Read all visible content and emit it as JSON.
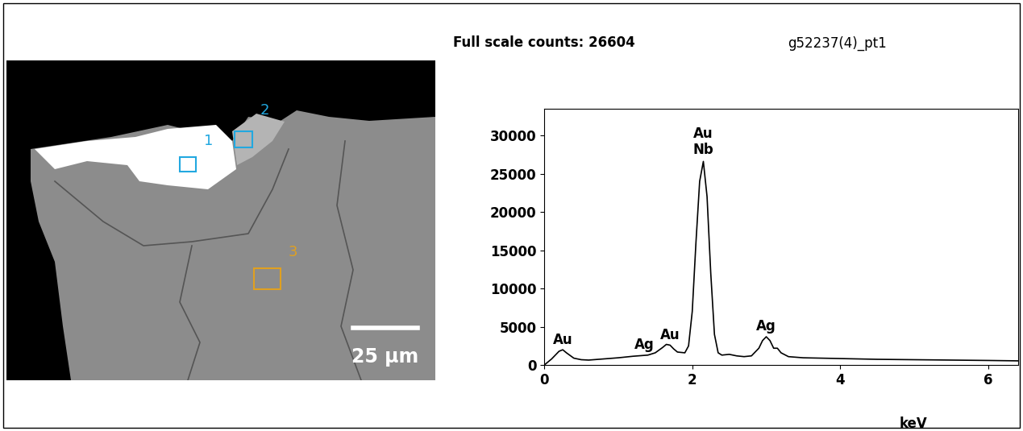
{
  "image": {
    "regions": [
      {
        "label": "1",
        "color": "#22a8e0"
      },
      {
        "label": "2",
        "color": "#22a8e0"
      },
      {
        "label": "3",
        "color": "#e0a020"
      }
    ],
    "scale_bar": "25 µm"
  },
  "chart_data": {
    "type": "line",
    "title": "Full scale counts: 26604",
    "subtitle": "g52237(4)_pt1",
    "x_label": "keV",
    "x": [
      0,
      0.1,
      0.2,
      0.25,
      0.3,
      0.4,
      0.5,
      0.6,
      0.8,
      1.0,
      1.2,
      1.4,
      1.5,
      1.6,
      1.65,
      1.7,
      1.75,
      1.8,
      1.9,
      1.95,
      2.0,
      2.05,
      2.1,
      2.15,
      2.2,
      2.25,
      2.3,
      2.35,
      2.4,
      2.5,
      2.6,
      2.7,
      2.8,
      2.9,
      2.95,
      3.0,
      3.05,
      3.1,
      3.15,
      3.2,
      3.3,
      3.5,
      4.0,
      4.5,
      5.0,
      5.5,
      6.0,
      6.4
    ],
    "values": [
      0,
      800,
      1800,
      2000,
      1600,
      900,
      700,
      650,
      800,
      950,
      1150,
      1300,
      1600,
      2300,
      2700,
      2600,
      2100,
      1700,
      1600,
      2500,
      7000,
      16000,
      24000,
      26600,
      22000,
      12000,
      4000,
      1600,
      1300,
      1400,
      1200,
      1100,
      1200,
      2200,
      3200,
      3700,
      3200,
      2200,
      2200,
      1600,
      1100,
      950,
      850,
      750,
      700,
      650,
      600,
      550
    ],
    "color": "#000000",
    "xlim": [
      0,
      6.4
    ],
    "xticks": [
      0,
      2,
      4,
      6
    ],
    "ylim": [
      0,
      33500
    ],
    "yticks": [
      0,
      5000,
      10000,
      15000,
      20000,
      25000,
      30000
    ],
    "annotations": [
      {
        "text": "Au",
        "x": 0.25,
        "y": 2300
      },
      {
        "text": "Ag",
        "x": 1.35,
        "y": 1700
      },
      {
        "text": "Au",
        "x": 1.7,
        "y": 3000
      },
      {
        "text": "Au\nNb",
        "x": 2.15,
        "y": 27200
      },
      {
        "text": "Ag",
        "x": 3.0,
        "y": 4100
      }
    ]
  }
}
